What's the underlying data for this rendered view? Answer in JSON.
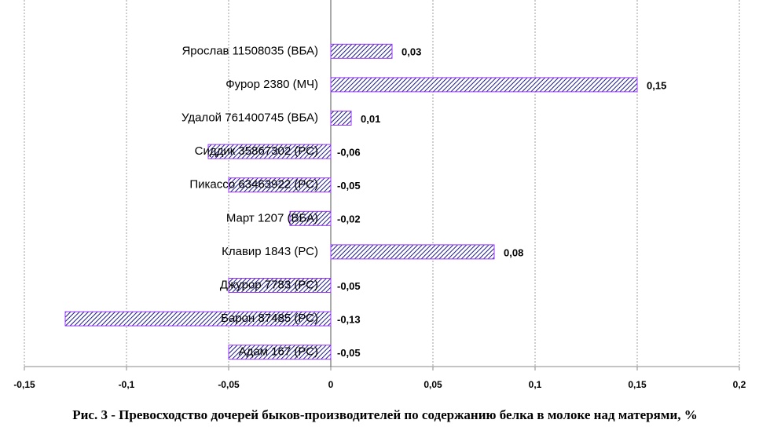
{
  "chart_data": {
    "type": "hbar",
    "caption": "Рис. 3 - Превосходство дочерей быков-производителей по содержанию белка в молоке над матерями, %",
    "categories": [
      "Ярослав 11508035 (ВБА)",
      "Фурор 2380 (МЧ)",
      "Удалой 761400745 (ВБА)",
      "Сиддик 35867302 (РС)",
      "Пикассо 63463922 (РС)",
      "Март 1207 (ВБА)",
      "Клавир 1843 (РС)",
      "Джурор 7783 (РС)",
      "Барон 87485 (РС)",
      "Адам 167 (РС)"
    ],
    "values": [
      0.03,
      0.15,
      0.01,
      -0.06,
      -0.05,
      -0.02,
      0.08,
      -0.05,
      -0.13,
      -0.05
    ],
    "value_labels": [
      "0,03",
      "0,15",
      "0,01",
      "-0,06",
      "-0,05",
      "-0,02",
      "0,08",
      "-0,05",
      "-0,13",
      "-0,05"
    ],
    "color": "#9933ff",
    "xlim": [
      -0.15,
      0.2
    ],
    "xticks": [
      {
        "value": -0.15,
        "label": "-0,15"
      },
      {
        "value": -0.1,
        "label": "-0,1"
      },
      {
        "value": -0.05,
        "label": "-0,05"
      },
      0,
      {
        "value": 0.05,
        "label": "0,05"
      },
      {
        "value": 0.1,
        "label": "0,1"
      },
      {
        "value": 0.15,
        "label": "0,15"
      },
      {
        "value": 0.2,
        "label": "0,2"
      }
    ],
    "grid": true
  }
}
